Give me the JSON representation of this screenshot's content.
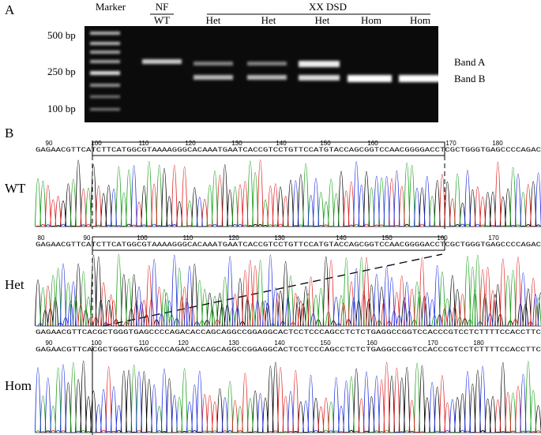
{
  "panel_a": {
    "label": "A",
    "marker": "Marker",
    "nf": "NF",
    "wt": "WT",
    "group": "XX DSD",
    "lanes": [
      "Het",
      "Het",
      "Het",
      "Hom",
      "Hom"
    ],
    "sizes": [
      "500 bp",
      "250 bp",
      "100 bp"
    ],
    "bands": [
      "Band A",
      "Band B"
    ]
  },
  "panel_b": {
    "label": "B",
    "traces": [
      {
        "name": "WT",
        "sequence": "GAGAACGTTCATCTTCATGGCGTAAAAGGGCACAAATGAATCACCGTCCTGTTCCATGTACCAGCGGTCCAACGGGGACCTCGCTGGGTGAGCCCCAGAC",
        "positions": [
          90,
          100,
          110,
          120,
          130,
          140,
          150,
          160,
          170,
          180
        ]
      },
      {
        "name": "Het",
        "sequence": "GAGAACGTTCATCTTCATGGCGTAAAAGGGCACAAATGAATCACCGTCCTGTTCCATGTACCAGCGGTCCAACGGGGACCTCGCTGGGTGAGCCCCAGAC",
        "sequence_lower": "GAGAACGTTCACGCTGGGTGAGCCCCAGACACCAGCAGGCCGGAGGCACTCCTCCCAGCCTCTCTGAGGCCGGTCCACCCGTCCTCTTTTCCACCTTC",
        "positions": [
          80,
          90,
          100,
          110,
          120,
          130,
          140,
          150,
          160,
          170
        ]
      },
      {
        "name": "Hom",
        "sequence": "GAGAACGTTCACGCTGGGTGAGCCCCAGACACCAGCAGGCCGGAGGCACTCCTCCCAGCCTCTCTGAGGCCGGTCCACCCGTCCTCTTTTCCACCTTC",
        "positions": [
          90,
          100,
          110,
          120,
          130,
          140,
          150,
          160,
          170,
          180
        ]
      }
    ]
  }
}
